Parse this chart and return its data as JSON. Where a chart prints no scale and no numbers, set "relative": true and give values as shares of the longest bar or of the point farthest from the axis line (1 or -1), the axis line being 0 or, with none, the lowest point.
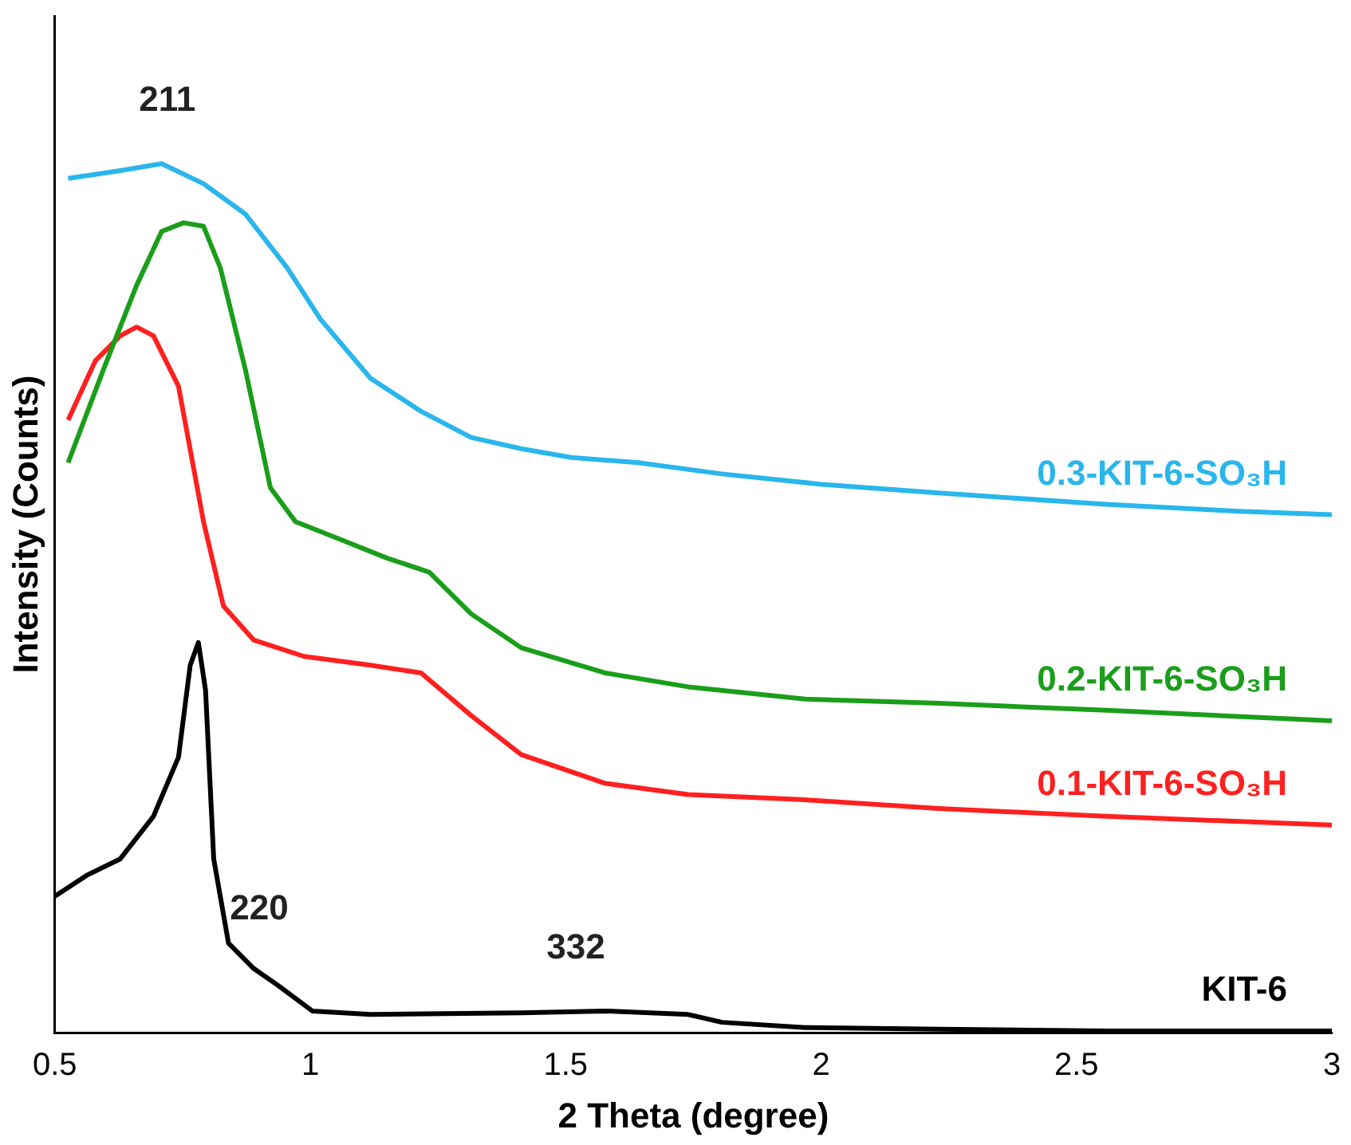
{
  "chart_data": {
    "type": "line",
    "relative": true,
    "xlabel": "2 Theta (degree)",
    "ylabel": "Intensity (Counts)",
    "xlim": [
      0.5,
      3
    ],
    "xticks": [
      0.5,
      1,
      1.5,
      2,
      2.5,
      3
    ],
    "grid": false,
    "legend": false,
    "marker": "none",
    "annotations": [
      {
        "text": "211",
        "x": 0.72,
        "y": 1
      },
      {
        "text": "220",
        "x": 0.9,
        "y": 0.07
      },
      {
        "text": "332",
        "x": 1.52,
        "y": 0.025
      }
    ],
    "series": [
      {
        "name": "0.3-KIT-6-SO₃H",
        "color": "#29b6ec",
        "x": [
          0.526,
          0.628,
          0.709,
          0.791,
          0.873,
          0.955,
          1.02,
          1.118,
          1.217,
          1.315,
          1.413,
          1.511,
          1.642,
          1.806,
          2.002,
          2.231,
          2.558,
          2.82,
          3.0
        ],
        "values": [
          0.983,
          0.992,
          1,
          0.977,
          0.942,
          0.88,
          0.821,
          0.753,
          0.715,
          0.685,
          0.672,
          0.662,
          0.656,
          0.643,
          0.631,
          0.621,
          0.608,
          0.6,
          0.596
        ]
      },
      {
        "name": "0.2-KIT-6-SO₃H",
        "color": "#1a9e1a",
        "x": [
          0.526,
          0.595,
          0.66,
          0.709,
          0.752,
          0.791,
          0.824,
          0.873,
          0.922,
          0.971,
          1.053,
          1.151,
          1.233,
          1.315,
          1.413,
          1.577,
          1.74,
          1.969,
          2.231,
          2.558,
          3.0
        ],
        "values": [
          0.656,
          0.763,
          0.86,
          0.922,
          0.932,
          0.928,
          0.88,
          0.763,
          0.627,
          0.588,
          0.569,
          0.546,
          0.53,
          0.482,
          0.443,
          0.414,
          0.398,
          0.384,
          0.379,
          0.371,
          0.359
        ]
      },
      {
        "name": "0.1-KIT-6-SO₃H",
        "color": "#ff2020",
        "x": [
          0.526,
          0.579,
          0.628,
          0.66,
          0.693,
          0.742,
          0.791,
          0.83,
          0.889,
          0.988,
          1.118,
          1.217,
          1.315,
          1.413,
          1.577,
          1.74,
          1.969,
          2.231,
          2.558,
          3.0
        ],
        "values": [
          0.705,
          0.773,
          0.802,
          0.812,
          0.802,
          0.744,
          0.588,
          0.491,
          0.452,
          0.433,
          0.423,
          0.414,
          0.365,
          0.32,
          0.287,
          0.274,
          0.268,
          0.258,
          0.249,
          0.239
        ]
      },
      {
        "name": "KIT-6",
        "color": "#000000",
        "x": [
          0.5,
          0.562,
          0.628,
          0.693,
          0.742,
          0.765,
          0.781,
          0.795,
          0.811,
          0.84,
          0.889,
          0.938,
          1.004,
          1.118,
          1.413,
          1.577,
          1.74,
          1.806,
          1.969,
          2.231,
          2.558,
          3.0
        ],
        "values": [
          0.157,
          0.181,
          0.2,
          0.249,
          0.317,
          0.423,
          0.449,
          0.394,
          0.2,
          0.103,
          0.074,
          0.054,
          0.025,
          0.021,
          0.023,
          0.025,
          0.021,
          0.012,
          0.006,
          0.004,
          0.002,
          0.002
        ]
      }
    ]
  }
}
